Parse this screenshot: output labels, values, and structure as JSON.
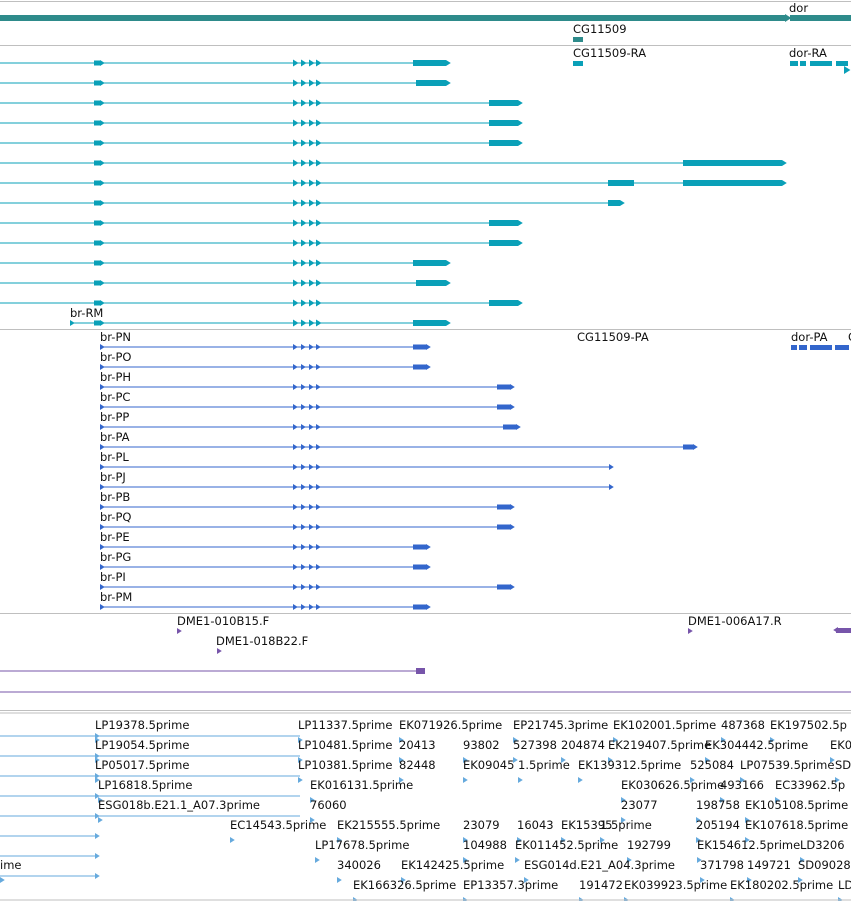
{
  "colors": {
    "gene": "#2e8b8b",
    "transcript": "#0aa0b8",
    "protein": "#3366cc",
    "clone": "#7755aa",
    "est": "#66aadd",
    "divider": "#bfbfbf"
  },
  "tracks": {
    "genes": {
      "labels": [
        "dor",
        "CG11509"
      ]
    },
    "transcripts": {
      "labels": [
        "CG11509-RA",
        "dor-RA",
        "br-RM"
      ]
    },
    "proteins": {
      "labels": [
        "br-PN",
        "CG11509-PA",
        "dor-PA",
        "br-PO",
        "br-PH",
        "br-PC",
        "br-PP",
        "br-PA",
        "br-PL",
        "br-PJ",
        "br-PB",
        "br-PQ",
        "br-PE",
        "br-PG",
        "br-PI",
        "br-PM"
      ]
    },
    "clones": {
      "labels": [
        "DME1-010B15.F",
        "DME1-006A17.R",
        "DME1-018B22.F"
      ]
    },
    "ests": {
      "labels": [
        "LP19378.5prime",
        "LP11337.5prime",
        "EK071926.5prime",
        "EP21745.3prime",
        "EK102001.5prime",
        "487368",
        "EK197502.5p",
        "LP19054.5prime",
        "LP10481.5prime",
        "20413",
        "93802",
        "527398",
        "204874",
        "EK219407.5prime",
        "EK304442.5prime",
        "EK0",
        "LP05017.5prime",
        "LP10381.5prime",
        "82448",
        "EK09045",
        "1.5prime",
        "EK139312.5prime",
        "525084",
        "LP07539.5prime",
        "SD",
        "LP16818.5prime",
        "EK016131.5prime",
        "EK030626.5prime",
        "493166",
        "EC33962.5p",
        "ESG018b.E21.1_A07.3prime",
        "76060",
        "23077",
        "198758",
        "EK105108.5prime",
        "EC14543.5prime",
        "EK215555.5prime",
        "23079",
        "16043",
        "EK15395",
        "1.5prime",
        "205194",
        "EK107618.5prime",
        "LP17678.5prime",
        "104988",
        "EK011452.5prime",
        "192799",
        "EK154612.5prime",
        "LD3206",
        "ime",
        "340026",
        "EK142425.5prime",
        "ESG014d.E21_A04.3prime",
        "371798",
        "149721",
        "SD09028",
        "EK166326.5prime",
        "EP13357.3prime",
        "191472",
        "EK039923.5prime",
        "EK180202.5prime",
        "LD"
      ]
    }
  }
}
